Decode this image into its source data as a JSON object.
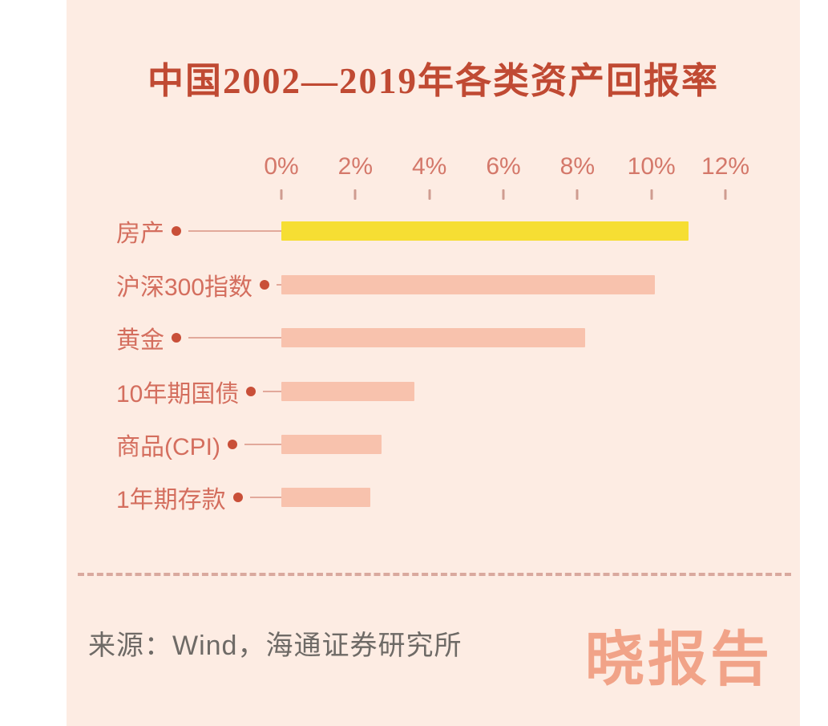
{
  "page": {
    "background": "#ffffff",
    "panel_background": "#fdece3"
  },
  "chart_data": {
    "type": "bar",
    "orientation": "horizontal",
    "title": "中国2002—2019年各类资产回报率",
    "categories": [
      "房产",
      "沪深300指数",
      "黄金",
      "10年期国债",
      "商品(CPI)",
      "1年期存款"
    ],
    "values": [
      11.0,
      10.1,
      8.2,
      3.6,
      2.7,
      2.4
    ],
    "value_unit": "%",
    "xlim": [
      0,
      12
    ],
    "x_tick_values": [
      0,
      2,
      4,
      6,
      8,
      10,
      12
    ],
    "x_tick_labels": [
      "0%",
      "2%",
      "4%",
      "6%",
      "8%",
      "10%",
      "12%"
    ],
    "grid": false,
    "legend": false,
    "highlight_index": 0,
    "bar_highlight_color": "#f6de33",
    "bar_default_color": "#f8c2ad"
  },
  "colors": {
    "title": "#c04a33",
    "axis_label": "#d4786a",
    "tick_mark": "#cf9c90",
    "category_label": "#d46e5e",
    "leader_dot": "#c94f38",
    "leader_line": "#e2a99b",
    "divider": "#d9a99e",
    "source_text": "#6e6a66",
    "watermark": "#f1a388"
  },
  "footer": {
    "source": "来源：Wind，海通证券研究所",
    "watermark": "晓报告"
  }
}
